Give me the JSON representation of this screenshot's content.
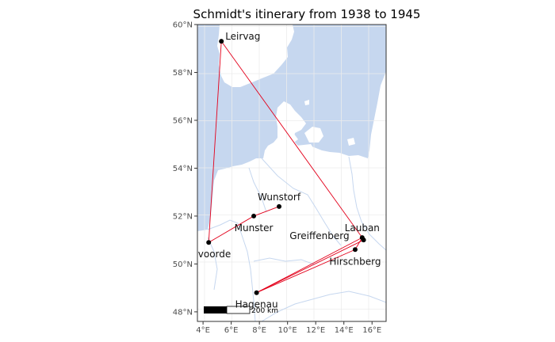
{
  "map": {
    "title": "Schmidt's itinerary from 1938 to 1945",
    "lon_range": [
      3.6,
      17.0
    ],
    "lat_range": [
      47.6,
      60.0
    ],
    "lat_ticks": [
      48,
      50,
      52,
      54,
      56,
      58,
      60
    ],
    "lat_tick_labels": [
      "48°N",
      "50°N",
      "52°N",
      "54°N",
      "56°N",
      "58°N",
      "60°N"
    ],
    "lon_ticks": [
      4,
      6,
      8,
      10,
      12,
      14,
      16
    ],
    "lon_tick_labels": [
      "4°E",
      "6°E",
      "8°E",
      "10°E",
      "12°E",
      "14°E",
      "16°E"
    ],
    "scale_bar_label": "200 km",
    "colors": {
      "water": "#c6d7ef",
      "land": "#ffffff",
      "route": "#e3001b",
      "river": "#c6d7ef",
      "grid": "#ececec",
      "point": "#000000",
      "border": "#333333"
    },
    "places": [
      {
        "name": "Leirvag",
        "lon": 5.3,
        "lat": 59.3,
        "label_anchor": "right"
      },
      {
        "name": "Wunstorf",
        "lon": 9.4,
        "lat": 52.4,
        "label_anchor": "above"
      },
      {
        "name": "Munster",
        "lon": 7.6,
        "lat": 52.0,
        "label_anchor": "below"
      },
      {
        "name": "Vilvoorde",
        "lon": 4.4,
        "lat": 50.9,
        "label_anchor": "below"
      },
      {
        "name": "Lauban",
        "lon": 15.3,
        "lat": 51.1,
        "label_anchor": "above"
      },
      {
        "name": "Greiffenberg",
        "lon": 15.4,
        "lat": 51.0,
        "label_anchor": "left"
      },
      {
        "name": "Hirschberg",
        "lon": 14.8,
        "lat": 50.6,
        "label_anchor": "below"
      },
      {
        "name": "Hagenau",
        "lon": 7.8,
        "lat": 48.8,
        "label_anchor": "below"
      }
    ],
    "route": [
      [
        "Leirvag",
        "Vilvoorde"
      ],
      [
        "Vilvoorde",
        "Munster"
      ],
      [
        "Munster",
        "Wunstorf"
      ],
      [
        "Leirvag",
        "Lauban"
      ],
      [
        "Lauban",
        "Hagenau"
      ],
      [
        "Greiffenberg",
        "Hagenau"
      ],
      [
        "Hirschberg",
        "Hagenau"
      ],
      [
        "Lauban",
        "Hirschberg"
      ]
    ]
  }
}
